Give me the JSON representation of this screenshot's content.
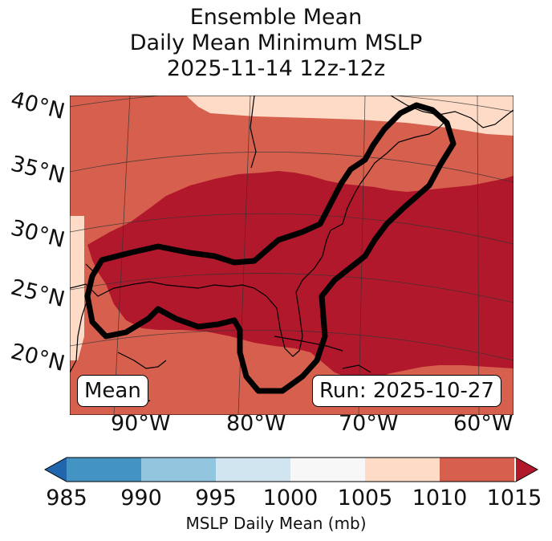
{
  "title": {
    "line1": "Ensemble Mean",
    "line2": "Daily Mean Minimum MSLP",
    "line3": "2025-11-14 12z-12z"
  },
  "map": {
    "lat_labels": [
      "40°N",
      "35°N",
      "30°N",
      "25°N",
      "20°N"
    ],
    "lon_labels": [
      "90°W",
      "80°W",
      "70°W",
      "60°W"
    ],
    "left_box": "Mean",
    "right_box": "Run: 2025-10-27",
    "colors": {
      "c1010_1015": "#d6604d",
      "c1005_1010": "#fddbc7",
      "c_above_1015": "#b2182b",
      "contour": "#000000",
      "coast": "#000000"
    }
  },
  "colorbar": {
    "ticks": [
      "985",
      "990",
      "995",
      "1000",
      "1005",
      "1010",
      "1015"
    ],
    "colors": [
      "#2166ac",
      "#4393c3",
      "#92c5de",
      "#d1e5f0",
      "#f7f7f7",
      "#fddbc7",
      "#d6604d",
      "#b2182b"
    ],
    "label": "MSLP Daily Mean (mb)"
  }
}
